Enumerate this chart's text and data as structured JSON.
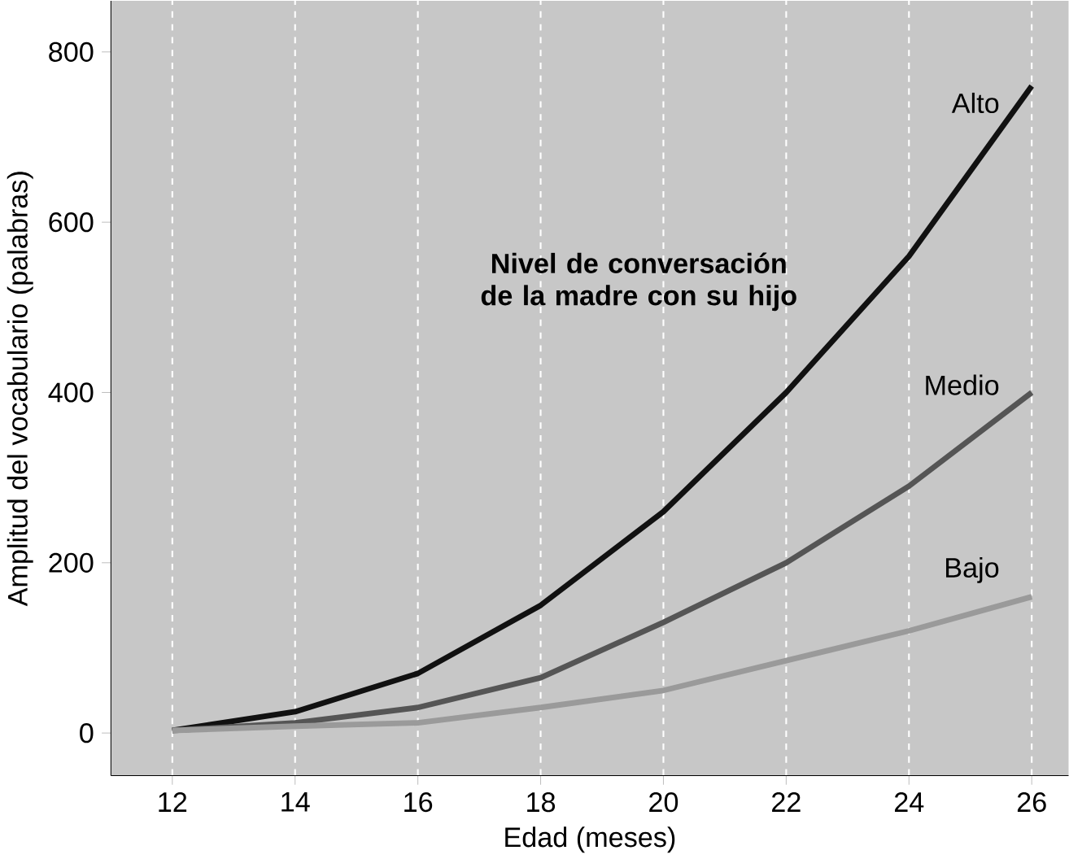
{
  "chart_data": {
    "type": "line",
    "xlabel": "Edad (meses)",
    "ylabel": "Amplitud del vocabulario (palabras)",
    "x": [
      12,
      14,
      16,
      18,
      20,
      22,
      24,
      26
    ],
    "series": [
      {
        "name": "Alto",
        "color": "#111111",
        "values": [
          3,
          25,
          70,
          150,
          260,
          400,
          560,
          760
        ]
      },
      {
        "name": "Medio",
        "color": "#555555",
        "values": [
          3,
          12,
          30,
          65,
          130,
          200,
          290,
          400
        ]
      },
      {
        "name": "Bajo",
        "color": "#9a9a9a",
        "values": [
          3,
          8,
          12,
          30,
          50,
          85,
          120,
          160
        ]
      }
    ],
    "annotations": [
      "**Nivel de conversación de la madre con su hijo**"
    ],
    "xlim": [
      11,
      26.6
    ],
    "ylim": [
      -50,
      860
    ],
    "xticks": [
      12,
      14,
      16,
      18,
      20,
      22,
      24,
      26
    ],
    "yticks": [
      0,
      200,
      400,
      600,
      800
    ],
    "grid": "x",
    "marker": "none",
    "line_style": "solid"
  }
}
